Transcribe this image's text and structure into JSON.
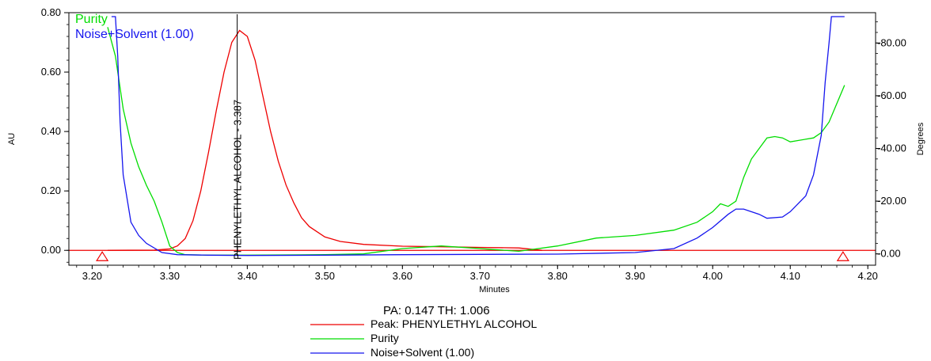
{
  "chart_data": {
    "type": "line",
    "xlabel": "Minutes",
    "ylabel_left": "AU",
    "ylabel_right": "Degrees",
    "xlim": [
      3.17,
      4.21
    ],
    "ylim_left": [
      -0.05,
      0.8
    ],
    "ylim_right": [
      -4.3,
      91.5
    ],
    "x_ticks": [
      3.2,
      3.3,
      3.4,
      3.5,
      3.6,
      3.7,
      3.8,
      3.9,
      4.0,
      4.1,
      4.2
    ],
    "x_tick_labels": [
      "3.20",
      "3.30",
      "3.40",
      "3.50",
      "3.60",
      "3.70",
      "3.80",
      "3.90",
      "4.00",
      "4.10",
      "4.20"
    ],
    "y_left_ticks": [
      0.0,
      0.2,
      0.4,
      0.6,
      0.8
    ],
    "y_left_tick_labels": [
      "0.00",
      "0.20",
      "0.40",
      "0.60",
      "0.80"
    ],
    "y_right_ticks": [
      0,
      20,
      40,
      60,
      80
    ],
    "y_right_tick_labels": [
      "-0.00",
      "-20.00",
      "-40.00",
      "-60.00",
      "-80.00"
    ],
    "peak_annotation": {
      "label": "PHENYLETHYL ALCOHOL - 3.387",
      "x": 3.387
    },
    "integration_markers": [
      3.213,
      4.168
    ],
    "plot_legend": [
      "Purity",
      "Noise+Solvent (1.00)"
    ],
    "pa_th_text": "PA:  0.147  TH:  1.006",
    "series": [
      {
        "name": "Peak: PHENYLETHYL ALCOHOL",
        "color": "#ee0000",
        "axis": "left",
        "points": [
          [
            3.22,
            0.0
          ],
          [
            3.28,
            0.001
          ],
          [
            3.3,
            0.005
          ],
          [
            3.31,
            0.015
          ],
          [
            3.32,
            0.04
          ],
          [
            3.33,
            0.1
          ],
          [
            3.34,
            0.2
          ],
          [
            3.35,
            0.33
          ],
          [
            3.36,
            0.47
          ],
          [
            3.37,
            0.6
          ],
          [
            3.38,
            0.7
          ],
          [
            3.39,
            0.74
          ],
          [
            3.4,
            0.72
          ],
          [
            3.41,
            0.64
          ],
          [
            3.42,
            0.52
          ],
          [
            3.43,
            0.4
          ],
          [
            3.44,
            0.3
          ],
          [
            3.45,
            0.22
          ],
          [
            3.46,
            0.16
          ],
          [
            3.47,
            0.11
          ],
          [
            3.48,
            0.08
          ],
          [
            3.5,
            0.045
          ],
          [
            3.52,
            0.03
          ],
          [
            3.55,
            0.02
          ],
          [
            3.6,
            0.014
          ],
          [
            3.65,
            0.012
          ],
          [
            3.7,
            0.01
          ],
          [
            3.75,
            0.008
          ],
          [
            3.78,
            0.0
          ]
        ]
      },
      {
        "name": "Purity",
        "color": "#00dd00",
        "axis": "right",
        "points": [
          [
            3.22,
            86.0
          ],
          [
            3.23,
            75.0
          ],
          [
            3.24,
            55.0
          ],
          [
            3.25,
            42.0
          ],
          [
            3.26,
            33.0
          ],
          [
            3.27,
            26.0
          ],
          [
            3.28,
            20.0
          ],
          [
            3.29,
            12.0
          ],
          [
            3.3,
            3.0
          ],
          [
            3.31,
            0.5
          ],
          [
            3.32,
            -0.3
          ],
          [
            3.35,
            -0.5
          ],
          [
            3.4,
            -0.5
          ],
          [
            3.5,
            -0.3
          ],
          [
            3.55,
            0.0
          ],
          [
            3.6,
            2.0
          ],
          [
            3.65,
            3.0
          ],
          [
            3.7,
            2.0
          ],
          [
            3.75,
            1.0
          ],
          [
            3.8,
            3.0
          ],
          [
            3.85,
            6.0
          ],
          [
            3.9,
            7.0
          ],
          [
            3.95,
            9.0
          ],
          [
            3.98,
            12.0
          ],
          [
            4.0,
            16.0
          ],
          [
            4.01,
            19.0
          ],
          [
            4.02,
            18.0
          ],
          [
            4.03,
            20.0
          ],
          [
            4.04,
            29.0
          ],
          [
            4.05,
            36.0
          ],
          [
            4.06,
            40.0
          ],
          [
            4.07,
            44.0
          ],
          [
            4.08,
            44.5
          ],
          [
            4.09,
            44.0
          ],
          [
            4.1,
            42.5
          ],
          [
            4.11,
            43.0
          ],
          [
            4.13,
            44.0
          ],
          [
            4.14,
            46.0
          ],
          [
            4.15,
            50.0
          ],
          [
            4.16,
            57.0
          ],
          [
            4.17,
            64.0
          ]
        ]
      },
      {
        "name": "Noise+Solvent (1.00)",
        "color": "#1515ee",
        "axis": "right",
        "points": [
          [
            3.225,
            90.0
          ],
          [
            3.23,
            90.0
          ],
          [
            3.233,
            75.0
          ],
          [
            3.236,
            50.0
          ],
          [
            3.24,
            30.0
          ],
          [
            3.25,
            12.0
          ],
          [
            3.26,
            7.0
          ],
          [
            3.27,
            4.0
          ],
          [
            3.29,
            0.5
          ],
          [
            3.31,
            -0.3
          ],
          [
            3.35,
            -0.5
          ],
          [
            3.4,
            -0.6
          ],
          [
            3.5,
            -0.5
          ],
          [
            3.6,
            -0.3
          ],
          [
            3.7,
            -0.2
          ],
          [
            3.8,
            -0.1
          ],
          [
            3.9,
            0.5
          ],
          [
            3.95,
            2.0
          ],
          [
            3.98,
            6.0
          ],
          [
            4.0,
            10.0
          ],
          [
            4.02,
            15.0
          ],
          [
            4.03,
            17.0
          ],
          [
            4.04,
            17.0
          ],
          [
            4.06,
            15.0
          ],
          [
            4.07,
            13.5
          ],
          [
            4.09,
            14.0
          ],
          [
            4.1,
            16.0
          ],
          [
            4.12,
            22.0
          ],
          [
            4.13,
            30.0
          ],
          [
            4.14,
            45.0
          ],
          [
            4.145,
            65.0
          ],
          [
            4.15,
            80.0
          ],
          [
            4.153,
            90.0
          ],
          [
            4.17,
            90.0
          ]
        ]
      }
    ],
    "baseline": {
      "color": "#ee0000",
      "axis": "left",
      "value": 0.0
    }
  }
}
